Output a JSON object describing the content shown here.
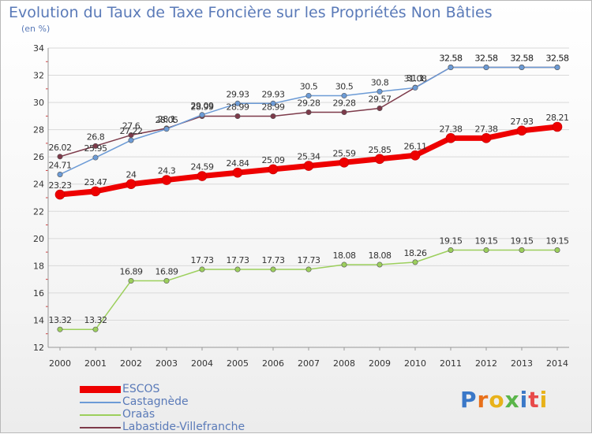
{
  "header": {
    "title": "Evolution du Taux de Taxe Foncière sur les Propriétés Non Bâties",
    "unit": "(en %)"
  },
  "logo": {
    "text": "Proxiti"
  },
  "colors": {
    "ESCOS": "#ee0000",
    "Castagnède": "#6c9bd6",
    "Oraàs": "#9ccf5c",
    "Labastide-Villefranche": "#7d3a4a",
    "axis": "#999999",
    "grid": "#d9d9d9",
    "text": "#333333"
  },
  "chart_data": {
    "type": "line",
    "title": "Evolution du Taux de Taxe Foncière sur les Propriétés Non Bâties",
    "ylabel": "(en %)",
    "x": [
      2000,
      2001,
      2002,
      2003,
      2004,
      2005,
      2006,
      2007,
      2008,
      2009,
      2010,
      2011,
      2012,
      2013,
      2014
    ],
    "ylim": [
      12,
      34
    ],
    "yticks": [
      12,
      14,
      16,
      18,
      20,
      22,
      24,
      26,
      28,
      30,
      32,
      34
    ],
    "grid": "horizontal",
    "legend": "bottom-left",
    "series": [
      {
        "name": "ESCOS",
        "values": [
          23.23,
          23.47,
          24,
          24.3,
          24.59,
          24.84,
          25.09,
          25.34,
          25.59,
          25.85,
          26.11,
          27.38,
          27.38,
          27.93,
          28.21
        ],
        "labels": [
          "23.23",
          "23.47",
          "24",
          "24.3",
          "24.59",
          "24.84",
          "25.09",
          "25.34",
          "25.59",
          "25.85",
          "26.11",
          "27.38",
          "27.38",
          "27.93",
          "28.21"
        ]
      },
      {
        "name": "Castagnède",
        "values": [
          24.71,
          25.95,
          27.22,
          28.05,
          29.09,
          29.93,
          29.93,
          30.5,
          30.5,
          30.8,
          31.08,
          32.58,
          32.58,
          32.58,
          32.58
        ],
        "labels": [
          "24.71",
          "25.95",
          "27.22",
          "28.05",
          "29.09",
          "29.93",
          "29.93",
          "30.5",
          "30.5",
          "30.8",
          "31.08",
          "32.58",
          "32.58",
          "32.58",
          "32.58"
        ]
      },
      {
        "name": "Oraàs",
        "values": [
          13.32,
          13.32,
          16.89,
          16.89,
          17.73,
          17.73,
          17.73,
          17.73,
          18.08,
          18.08,
          18.26,
          19.15,
          19.15,
          19.15,
          19.15
        ],
        "labels": [
          "13.32",
          "13.32",
          "16.89",
          "16.89",
          "17.73",
          "17.73",
          "17.73",
          "17.73",
          "18.08",
          "18.08",
          "18.26",
          "19.15",
          "19.15",
          "19.15",
          "19.15"
        ]
      },
      {
        "name": "Labastide-Villefranche",
        "values": [
          26.02,
          26.8,
          27.6,
          28.1,
          28.99,
          28.99,
          28.99,
          29.28,
          29.28,
          29.57,
          31.1,
          32.58,
          32.58,
          32.58,
          32.58
        ],
        "labels": [
          "26.02",
          "26.8",
          "27.6",
          "28.1",
          "28.99",
          "28.99",
          "28.99",
          "29.28",
          "29.28",
          "29.57",
          "31.1",
          "32.58",
          "32.58",
          "32.58",
          "32.58"
        ]
      }
    ]
  }
}
